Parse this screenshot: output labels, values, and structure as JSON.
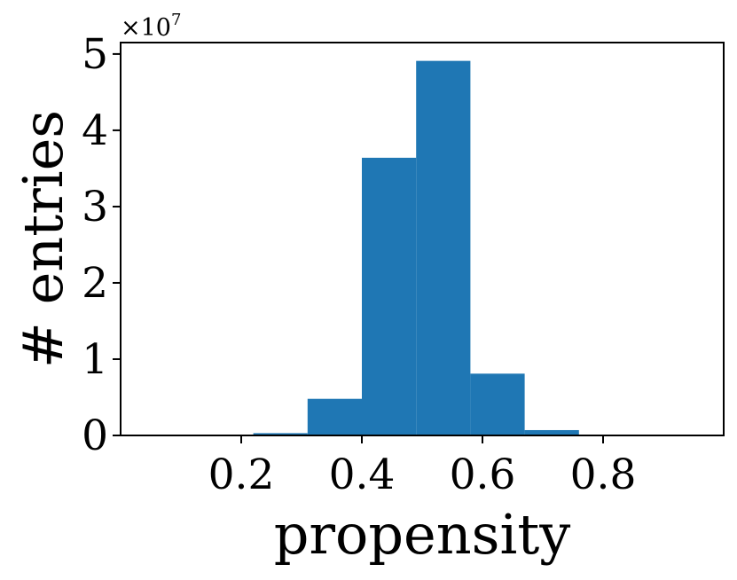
{
  "chart_data": {
    "type": "bar",
    "title": "",
    "xlabel": "propensity",
    "ylabel": "# entries",
    "y_scale_label": "×10",
    "y_scale_exponent": "7",
    "y_scale": 10000000,
    "xlim": [
      0.0,
      1.0
    ],
    "ylim": [
      0,
      5.15
    ],
    "x_ticks": [
      0.2,
      0.4,
      0.6,
      0.8
    ],
    "x_tick_labels": [
      "0.2",
      "0.4",
      "0.6",
      "0.8"
    ],
    "y_ticks": [
      0,
      1,
      2,
      3,
      4,
      5
    ],
    "y_tick_labels": [
      "0",
      "1",
      "2",
      "3",
      "4",
      "5"
    ],
    "grid": false,
    "legend": "none",
    "color": "#1f77b4",
    "bins": [
      {
        "start": 0.22,
        "end": 0.31,
        "value": 0.03
      },
      {
        "start": 0.31,
        "end": 0.4,
        "value": 0.48
      },
      {
        "start": 0.4,
        "end": 0.49,
        "value": 3.64
      },
      {
        "start": 0.49,
        "end": 0.58,
        "value": 4.91
      },
      {
        "start": 0.58,
        "end": 0.67,
        "value": 0.81
      },
      {
        "start": 0.67,
        "end": 0.76,
        "value": 0.07
      }
    ]
  }
}
